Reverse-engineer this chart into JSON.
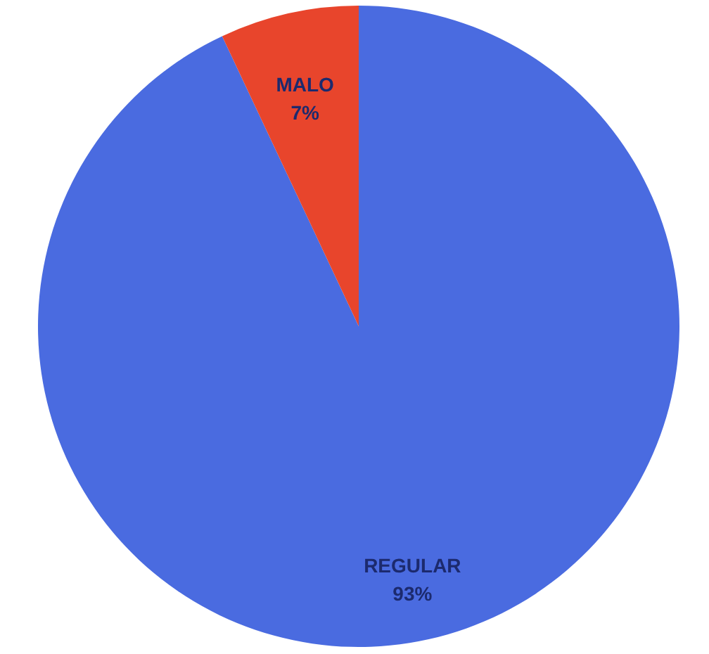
{
  "chart_data": {
    "type": "pie",
    "categories": [
      "REGULAR",
      "MALO"
    ],
    "values": [
      93,
      7
    ],
    "colors": [
      "#4a6be0",
      "#e8452c"
    ],
    "value_labels": [
      "93%",
      "7%"
    ],
    "legend": false
  }
}
